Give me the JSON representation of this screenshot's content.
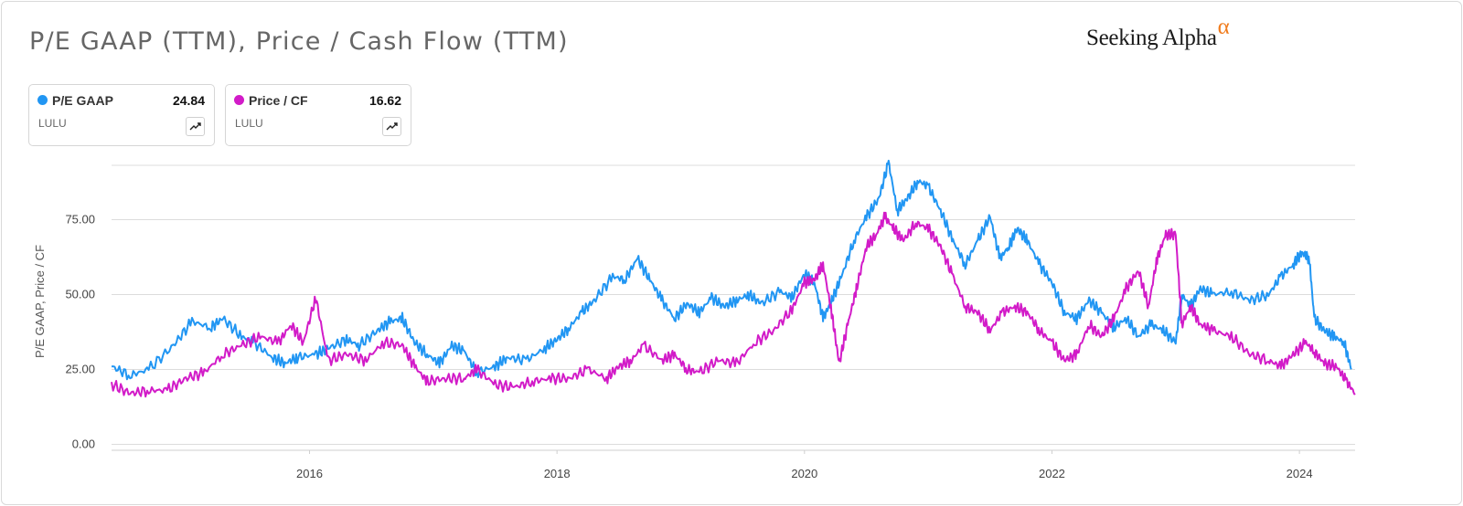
{
  "title": "P/E GAAP (TTM), Price / Cash Flow (TTM)",
  "brand": {
    "name": "Seeking Alpha",
    "symbol": "α"
  },
  "cards": [
    {
      "label": "P/E GAAP",
      "value": "24.84",
      "ticker": "LULU",
      "color": "#2196f3",
      "icon": "trend-icon"
    },
    {
      "label": "Price / CF",
      "value": "16.62",
      "ticker": "LULU",
      "color": "#d21bc8",
      "icon": "trend-icon"
    }
  ],
  "chart_data": {
    "type": "line",
    "title": "P/E GAAP (TTM), Price / Cash Flow (TTM)",
    "xlabel": "",
    "ylabel": "P/E GAAP, Price / CF",
    "xlim": [
      2014.4,
      2024.45
    ],
    "ylim": [
      -2,
      98
    ],
    "x_ticks": [
      "2016",
      "2018",
      "2020",
      "2022",
      "2024"
    ],
    "y_ticks": [
      "0.00",
      "25.00",
      "50.00",
      "75.00"
    ],
    "grid": true,
    "series": [
      {
        "name": "P/E GAAP",
        "color": "#2196f3",
        "x": [
          2014.4,
          2014.55,
          2014.7,
          2014.9,
          2015.05,
          2015.2,
          2015.3,
          2015.45,
          2015.55,
          2015.7,
          2015.8,
          2015.9,
          2016.05,
          2016.15,
          2016.3,
          2016.4,
          2016.55,
          2016.65,
          2016.75,
          2016.85,
          2016.95,
          2017.05,
          2017.15,
          2017.25,
          2017.35,
          2017.5,
          2017.6,
          2017.75,
          2017.9,
          2018.0,
          2018.1,
          2018.2,
          2018.3,
          2018.45,
          2018.55,
          2018.65,
          2018.75,
          2018.85,
          2018.95,
          2019.05,
          2019.15,
          2019.25,
          2019.35,
          2019.45,
          2019.55,
          2019.65,
          2019.8,
          2019.9,
          2020.0,
          2020.08,
          2020.15,
          2020.22,
          2020.3,
          2020.4,
          2020.5,
          2020.6,
          2020.68,
          2020.75,
          2020.83,
          2020.92,
          2021.0,
          2021.1,
          2021.2,
          2021.3,
          2021.4,
          2021.5,
          2021.58,
          2021.65,
          2021.72,
          2021.8,
          2021.9,
          2022.0,
          2022.1,
          2022.2,
          2022.3,
          2022.4,
          2022.5,
          2022.6,
          2022.7,
          2022.8,
          2022.9,
          2023.0,
          2023.05,
          2023.12,
          2023.2,
          2023.3,
          2023.45,
          2023.6,
          2023.75,
          2023.85,
          2023.95,
          2024.02,
          2024.08,
          2024.12,
          2024.2,
          2024.28,
          2024.36,
          2024.42
        ],
        "values": [
          26,
          23,
          25,
          33,
          41,
          39,
          42,
          36,
          34,
          29,
          27,
          29,
          30,
          32,
          35,
          33,
          38,
          41,
          42,
          34,
          30,
          27,
          33,
          31,
          24,
          26,
          29,
          28,
          32,
          35,
          39,
          44,
          48,
          56,
          55,
          62,
          55,
          48,
          42,
          47,
          44,
          49,
          46,
          48,
          50,
          47,
          51,
          49,
          57,
          54,
          42,
          48,
          56,
          68,
          76,
          82,
          94,
          78,
          82,
          88,
          86,
          78,
          68,
          60,
          68,
          76,
          62,
          66,
          72,
          68,
          60,
          54,
          44,
          42,
          48,
          44,
          39,
          42,
          36,
          40,
          38,
          34,
          50,
          46,
          52,
          50,
          51,
          48,
          50,
          56,
          60,
          64,
          62,
          42,
          38,
          36,
          34,
          25
        ]
      },
      {
        "name": "Price / CF",
        "color": "#d21bc8",
        "x": [
          2014.4,
          2014.55,
          2014.7,
          2014.85,
          2015.0,
          2015.15,
          2015.3,
          2015.45,
          2015.6,
          2015.75,
          2015.85,
          2015.95,
          2016.05,
          2016.15,
          2016.3,
          2016.45,
          2016.6,
          2016.75,
          2016.85,
          2016.95,
          2017.1,
          2017.25,
          2017.35,
          2017.5,
          2017.65,
          2017.8,
          2017.95,
          2018.1,
          2018.25,
          2018.4,
          2018.5,
          2018.6,
          2018.7,
          2018.85,
          2018.95,
          2019.05,
          2019.15,
          2019.3,
          2019.45,
          2019.6,
          2019.75,
          2019.9,
          2020.0,
          2020.08,
          2020.15,
          2020.22,
          2020.28,
          2020.35,
          2020.42,
          2020.5,
          2020.58,
          2020.65,
          2020.72,
          2020.8,
          2020.9,
          2021.0,
          2021.1,
          2021.2,
          2021.3,
          2021.4,
          2021.5,
          2021.6,
          2021.7,
          2021.8,
          2021.9,
          2022.0,
          2022.1,
          2022.2,
          2022.3,
          2022.4,
          2022.5,
          2022.6,
          2022.7,
          2022.78,
          2022.85,
          2022.92,
          2023.0,
          2023.05,
          2023.12,
          2023.2,
          2023.3,
          2023.45,
          2023.6,
          2023.75,
          2023.85,
          2023.95,
          2024.05,
          2024.12,
          2024.2,
          2024.3,
          2024.38,
          2024.45
        ],
        "values": [
          20,
          17,
          18,
          18,
          22,
          24,
          30,
          33,
          36,
          34,
          40,
          34,
          49,
          28,
          30,
          28,
          34,
          33,
          26,
          21,
          22,
          22,
          25,
          20,
          19,
          21,
          22,
          22,
          25,
          22,
          26,
          28,
          33,
          28,
          30,
          25,
          24,
          28,
          27,
          34,
          38,
          45,
          54,
          55,
          60,
          44,
          27,
          40,
          52,
          66,
          70,
          76,
          72,
          68,
          74,
          72,
          66,
          56,
          46,
          44,
          38,
          44,
          46,
          44,
          38,
          34,
          28,
          30,
          40,
          36,
          42,
          52,
          58,
          46,
          62,
          70,
          70,
          40,
          46,
          40,
          38,
          36,
          30,
          28,
          26,
          30,
          34,
          31,
          27,
          26,
          21,
          17
        ]
      }
    ]
  }
}
